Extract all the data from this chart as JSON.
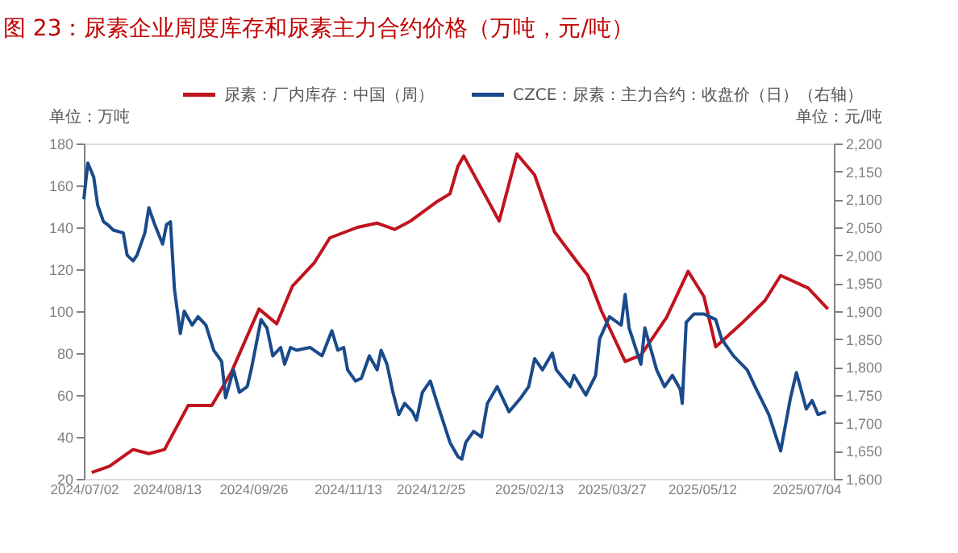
{
  "chart_data": {
    "type": "line",
    "title": "图 23：尿素企业周度库存和尿素主力合约价格（万吨，元/吨）",
    "ylabel": "单位：万吨",
    "y2label": "单位：元/吨",
    "xlim": [
      "2024-07-02",
      "2025-07-18"
    ],
    "xticks": [
      {
        "value": "2024-07-02",
        "label": "2024/07/02"
      },
      {
        "value": "2024-08-13",
        "label": "2024/08/13"
      },
      {
        "value": "2024-09-26",
        "label": "2024/09/26"
      },
      {
        "value": "2024-11-13",
        "label": "2024/11/13"
      },
      {
        "value": "2024-12-25",
        "label": "2024/12/25"
      },
      {
        "value": "2025-02-13",
        "label": "2025/02/13"
      },
      {
        "value": "2025-03-27",
        "label": "2025/03/27"
      },
      {
        "value": "2025-05-12",
        "label": "2025/05/12"
      },
      {
        "value": "2025-07-04",
        "label": "2025/07/04"
      }
    ],
    "ylim": [
      20,
      180
    ],
    "yticks": [
      20,
      40,
      60,
      80,
      100,
      120,
      140,
      160,
      180
    ],
    "y2lim": [
      1600,
      2200
    ],
    "y2ticks": [
      {
        "value": 1600,
        "label": "1,600"
      },
      {
        "value": 1650,
        "label": "1,650"
      },
      {
        "value": 1700,
        "label": "1,700"
      },
      {
        "value": 1750,
        "label": "1,750"
      },
      {
        "value": 1800,
        "label": "1,800"
      },
      {
        "value": 1850,
        "label": "1,850"
      },
      {
        "value": 1900,
        "label": "1,900"
      },
      {
        "value": 1950,
        "label": "1,950"
      },
      {
        "value": 2000,
        "label": "2,000"
      },
      {
        "value": 2050,
        "label": "2,050"
      },
      {
        "value": 2100,
        "label": "2,100"
      },
      {
        "value": 2150,
        "label": "2,150"
      },
      {
        "value": 2200,
        "label": "2,200"
      }
    ],
    "legend": "top",
    "grid": false,
    "marker": "none",
    "line_style": "solid",
    "series": [
      {
        "name": "尿素：厂内库存：中国（周）",
        "color": "#c0141e",
        "x": [
          "2024-07-06",
          "2024-07-15",
          "2024-07-27",
          "2024-08-04",
          "2024-08-12",
          "2024-08-24",
          "2024-09-05",
          "2024-09-15",
          "2024-09-29",
          "2024-10-08",
          "2024-10-16",
          "2024-10-27",
          "2024-11-04",
          "2024-11-18",
          "2024-11-28",
          "2024-12-07",
          "2024-12-15",
          "2024-12-28",
          "2025-01-04",
          "2025-01-08",
          "2025-01-11",
          "2025-01-29",
          "2025-02-07",
          "2025-02-16",
          "2025-02-26",
          "2025-03-10",
          "2025-03-15",
          "2025-03-22",
          "2025-04-03",
          "2025-04-11",
          "2025-04-24",
          "2025-05-05",
          "2025-05-13",
          "2025-05-19",
          "2025-06-01",
          "2025-06-13",
          "2025-06-21",
          "2025-07-05",
          "2025-07-15"
        ],
        "values": [
          23,
          26,
          34,
          32,
          34,
          55,
          55,
          71,
          101,
          94,
          112,
          123,
          135,
          140,
          142,
          139,
          143,
          152,
          156,
          169,
          174,
          143,
          175,
          165,
          138,
          123,
          117,
          100,
          76,
          79,
          97,
          119,
          107,
          83,
          94,
          105,
          117,
          111,
          101
        ]
      },
      {
        "name": "CZCE：尿素：主力合约：收盘价（日）（右轴）",
        "color": "#1a4a8a",
        "axis": "y2",
        "x": [
          "2024-07-02",
          "2024-07-04",
          "2024-07-07",
          "2024-07-09",
          "2024-07-12",
          "2024-07-14",
          "2024-07-17",
          "2024-07-22",
          "2024-07-24",
          "2024-07-27",
          "2024-07-29",
          "2024-08-02",
          "2024-08-04",
          "2024-08-07",
          "2024-08-11",
          "2024-08-13",
          "2024-08-15",
          "2024-08-17",
          "2024-08-20",
          "2024-08-22",
          "2024-08-26",
          "2024-08-29",
          "2024-09-02",
          "2024-09-06",
          "2024-09-10",
          "2024-09-12",
          "2024-09-16",
          "2024-09-19",
          "2024-09-23",
          "2024-09-25",
          "2024-09-30",
          "2024-10-03",
          "2024-10-06",
          "2024-10-10",
          "2024-10-12",
          "2024-10-15",
          "2024-10-18",
          "2024-10-25",
          "2024-10-31",
          "2024-11-05",
          "2024-11-08",
          "2024-11-11",
          "2024-11-13",
          "2024-11-17",
          "2024-11-20",
          "2024-11-24",
          "2024-11-28",
          "2024-11-30",
          "2024-12-03",
          "2024-12-06",
          "2024-12-09",
          "2024-12-12",
          "2024-12-16",
          "2024-12-18",
          "2024-12-21",
          "2024-12-25",
          "2024-12-29",
          "2025-01-04",
          "2025-01-08",
          "2025-01-10",
          "2025-01-12",
          "2025-01-16",
          "2025-01-20",
          "2025-01-23",
          "2025-01-28",
          "2025-02-03",
          "2025-02-09",
          "2025-02-13",
          "2025-02-16",
          "2025-02-20",
          "2025-02-25",
          "2025-02-27",
          "2025-03-06",
          "2025-03-08",
          "2025-03-14",
          "2025-03-19",
          "2025-03-21",
          "2025-03-26",
          "2025-04-01",
          "2025-04-03",
          "2025-04-05",
          "2025-04-11",
          "2025-04-13",
          "2025-04-19",
          "2025-04-23",
          "2025-04-27",
          "2025-05-01",
          "2025-05-02",
          "2025-05-04",
          "2025-05-08",
          "2025-05-13",
          "2025-05-19",
          "2025-05-22",
          "2025-05-28",
          "2025-06-04",
          "2025-06-08",
          "2025-06-15",
          "2025-06-21",
          "2025-06-26",
          "2025-06-29",
          "2025-07-04",
          "2025-07-07",
          "2025-07-10",
          "2025-07-14"
        ],
        "values": [
          2100,
          2165,
          2140,
          2090,
          2060,
          2055,
          2045,
          2040,
          2000,
          1990,
          2000,
          2040,
          2085,
          2055,
          2020,
          2055,
          2060,
          1940,
          1860,
          1900,
          1875,
          1890,
          1875,
          1830,
          1810,
          1745,
          1795,
          1755,
          1765,
          1795,
          1885,
          1870,
          1820,
          1835,
          1805,
          1835,
          1830,
          1835,
          1820,
          1865,
          1830,
          1835,
          1795,
          1775,
          1780,
          1820,
          1795,
          1830,
          1805,
          1755,
          1715,
          1735,
          1720,
          1705,
          1755,
          1775,
          1730,
          1665,
          1640,
          1635,
          1665,
          1685,
          1675,
          1735,
          1765,
          1720,
          1745,
          1765,
          1815,
          1795,
          1825,
          1795,
          1765,
          1785,
          1750,
          1785,
          1850,
          1890,
          1875,
          1930,
          1870,
          1805,
          1870,
          1795,
          1765,
          1785,
          1760,
          1735,
          1880,
          1895,
          1895,
          1885,
          1850,
          1820,
          1795,
          1765,
          1715,
          1650,
          1745,
          1790,
          1725,
          1740,
          1715,
          1720
        ]
      }
    ]
  }
}
